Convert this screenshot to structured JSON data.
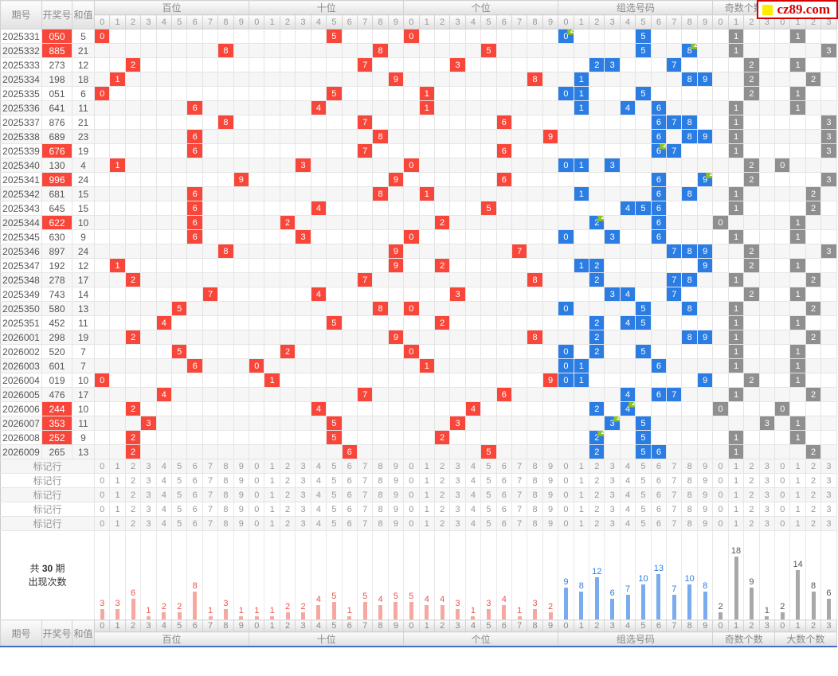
{
  "logo": {
    "text": "cz89.com"
  },
  "header": {
    "period": "期号",
    "number": "开奖号",
    "sum": "和值"
  },
  "sections": [
    {
      "id": "bai",
      "label": "百位",
      "cols": [
        "0",
        "1",
        "2",
        "3",
        "4",
        "5",
        "6",
        "7",
        "8",
        "9"
      ],
      "style": "red"
    },
    {
      "id": "shi",
      "label": "十位",
      "cols": [
        "0",
        "1",
        "2",
        "3",
        "4",
        "5",
        "6",
        "7",
        "8",
        "9"
      ],
      "style": "red"
    },
    {
      "id": "ge",
      "label": "个位",
      "cols": [
        "0",
        "1",
        "2",
        "3",
        "4",
        "5",
        "6",
        "7",
        "8",
        "9"
      ],
      "style": "red"
    },
    {
      "id": "zuxuan",
      "label": "组选号码",
      "cols": [
        "0",
        "1",
        "2",
        "3",
        "4",
        "5",
        "6",
        "7",
        "8",
        "9"
      ],
      "style": "blue"
    },
    {
      "id": "jishu",
      "label": "奇数个数",
      "cols": [
        "0",
        "1",
        "2",
        "3"
      ],
      "style": "gray"
    },
    {
      "id": "dashu",
      "label": "大数个数",
      "cols": [
        "0",
        "1",
        "2",
        "3"
      ],
      "style": "gray"
    }
  ],
  "rows": [
    {
      "period": "2025331",
      "number": "050",
      "sum": "5",
      "pair": true
    },
    {
      "period": "2025332",
      "number": "885",
      "sum": "21",
      "pair": true
    },
    {
      "period": "2025333",
      "number": "273",
      "sum": "12",
      "pair": false
    },
    {
      "period": "2025334",
      "number": "198",
      "sum": "18",
      "pair": false
    },
    {
      "period": "2025335",
      "number": "051",
      "sum": "6",
      "pair": false
    },
    {
      "period": "2025336",
      "number": "641",
      "sum": "11",
      "pair": false
    },
    {
      "period": "2025337",
      "number": "876",
      "sum": "21",
      "pair": false
    },
    {
      "period": "2025338",
      "number": "689",
      "sum": "23",
      "pair": false
    },
    {
      "period": "2025339",
      "number": "676",
      "sum": "19",
      "pair": true
    },
    {
      "period": "2025340",
      "number": "130",
      "sum": "4",
      "pair": false
    },
    {
      "period": "2025341",
      "number": "996",
      "sum": "24",
      "pair": true
    },
    {
      "period": "2025342",
      "number": "681",
      "sum": "15",
      "pair": false
    },
    {
      "period": "2025343",
      "number": "645",
      "sum": "15",
      "pair": false
    },
    {
      "period": "2025344",
      "number": "622",
      "sum": "10",
      "pair": true
    },
    {
      "period": "2025345",
      "number": "630",
      "sum": "9",
      "pair": false
    },
    {
      "period": "2025346",
      "number": "897",
      "sum": "24",
      "pair": false
    },
    {
      "period": "2025347",
      "number": "192",
      "sum": "12",
      "pair": false
    },
    {
      "period": "2025348",
      "number": "278",
      "sum": "17",
      "pair": false
    },
    {
      "period": "2025349",
      "number": "743",
      "sum": "14",
      "pair": false
    },
    {
      "period": "2025350",
      "number": "580",
      "sum": "13",
      "pair": false
    },
    {
      "period": "2025351",
      "number": "452",
      "sum": "11",
      "pair": false
    },
    {
      "period": "2026001",
      "number": "298",
      "sum": "19",
      "pair": false
    },
    {
      "period": "2026002",
      "number": "520",
      "sum": "7",
      "pair": false
    },
    {
      "period": "2026003",
      "number": "601",
      "sum": "7",
      "pair": false
    },
    {
      "period": "2026004",
      "number": "019",
      "sum": "10",
      "pair": false
    },
    {
      "period": "2026005",
      "number": "476",
      "sum": "17",
      "pair": false
    },
    {
      "period": "2026006",
      "number": "244",
      "sum": "10",
      "pair": true
    },
    {
      "period": "2026007",
      "number": "353",
      "sum": "11",
      "pair": true
    },
    {
      "period": "2026008",
      "number": "252",
      "sum": "9",
      "pair": true
    },
    {
      "period": "2026009",
      "number": "265",
      "sum": "13",
      "pair": false
    }
  ],
  "marker": {
    "label": "标记行",
    "count": 5
  },
  "summary": {
    "line1_prefix": "共",
    "line1_value": "30",
    "line1_suffix": "期",
    "line2": "出现次数"
  },
  "repeat_badge_text": "2",
  "chart_data": {
    "type": "bar",
    "title": "共30期出现次数",
    "legend_position": "none",
    "grid": false,
    "groups": [
      {
        "section": "百位",
        "categories": [
          "0",
          "1",
          "2",
          "3",
          "4",
          "5",
          "6",
          "7",
          "8",
          "9"
        ],
        "values": [
          3,
          3,
          6,
          1,
          2,
          2,
          8,
          1,
          3,
          1
        ]
      },
      {
        "section": "十位",
        "categories": [
          "0",
          "1",
          "2",
          "3",
          "4",
          "5",
          "6",
          "7",
          "8",
          "9"
        ],
        "values": [
          1,
          1,
          2,
          2,
          4,
          5,
          1,
          5,
          4,
          5
        ]
      },
      {
        "section": "个位",
        "categories": [
          "0",
          "1",
          "2",
          "3",
          "4",
          "5",
          "6",
          "7",
          "8",
          "9"
        ],
        "values": [
          5,
          4,
          4,
          3,
          1,
          3,
          4,
          1,
          3,
          2
        ]
      },
      {
        "section": "组选号码",
        "categories": [
          "0",
          "1",
          "2",
          "3",
          "4",
          "5",
          "6",
          "7",
          "8",
          "9"
        ],
        "values": [
          9,
          8,
          12,
          6,
          7,
          10,
          13,
          7,
          10,
          8
        ]
      },
      {
        "section": "奇数个数",
        "categories": [
          "0",
          "1",
          "2",
          "3"
        ],
        "values": [
          2,
          18,
          9,
          1
        ]
      },
      {
        "section": "大数个数",
        "categories": [
          "0",
          "1",
          "2",
          "3"
        ],
        "values": [
          2,
          14,
          8,
          6
        ]
      }
    ]
  },
  "colors": {
    "hit_red": "#f8473a",
    "hit_blue": "#2b7de3",
    "hit_gray": "#8f8f8f",
    "repeat_badge_green": "#8dc32a",
    "bar_red": "#f5a7a2",
    "bar_blue": "#79abee",
    "bar_gray": "#a8a8a8",
    "logo_red": "#d50000",
    "logo_yellow": "#ffed00",
    "bottom_line_blue": "#3d6fc4"
  }
}
